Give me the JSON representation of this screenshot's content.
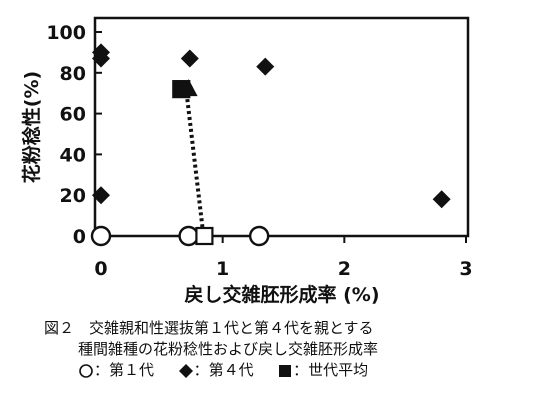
{
  "chart_data": {
    "type": "scatter",
    "xlabel": "戻し交雑胚形成率 (%)",
    "ylabel": "花粉稔性(%)",
    "xlim": [
      0,
      3
    ],
    "ylim": [
      0,
      100
    ],
    "x_ticks": [
      "0",
      "1",
      "2",
      "3"
    ],
    "y_ticks": [
      "0",
      "20",
      "40",
      "60",
      "80",
      "100"
    ],
    "grid": false,
    "series": [
      {
        "name": "第1代",
        "marker": "open-circle",
        "points": [
          [
            0.0,
            0
          ],
          [
            0.72,
            0
          ],
          [
            1.3,
            0
          ]
        ]
      },
      {
        "name": "第4代",
        "marker": "filled-diamond",
        "points": [
          [
            0.0,
            90
          ],
          [
            0.0,
            87
          ],
          [
            0.0,
            20
          ],
          [
            0.73,
            87
          ],
          [
            1.35,
            83
          ],
          [
            2.8,
            18
          ]
        ]
      },
      {
        "name": "世代平均",
        "marker": "square",
        "points": [
          [
            0.66,
            72
          ],
          [
            0.85,
            0
          ]
        ],
        "fills": [
          "#111111",
          "#ffffff"
        ],
        "connector": "dotted"
      }
    ],
    "extra_markers": [
      {
        "marker": "filled-triangle",
        "x": 0.72,
        "y": 72
      }
    ]
  },
  "caption": {
    "line1": "図２　交雑親和性選抜第１代と第４代を親とする",
    "line2": "種間雑種の花粉稔性および戻し交雑胚形成率",
    "legend_g1": "：第１代",
    "legend_g4": "：第４代",
    "legend_avg": "：世代平均"
  }
}
